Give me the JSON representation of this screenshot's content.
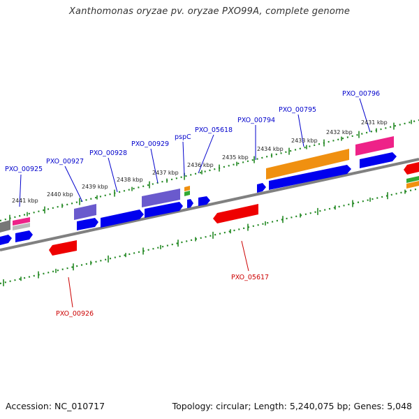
{
  "header": {
    "title": "Xanthomonas oryzae pv. oryzae PXO99A, complete genome"
  },
  "footer": {
    "accession": "Accession: NC_010717",
    "summary": "Topology: circular; Length: 5,240,075 bp; Genes: 5,048"
  },
  "kbp_labels": [
    "2441 kbp",
    "2440 kbp",
    "2439 kbp",
    "2438 kbp",
    "2437 kbp",
    "2436 kbp",
    "2435 kbp",
    "2434 kbp",
    "2433 kbp",
    "2432 kbp",
    "2431 kbp"
  ],
  "gene_labels_forward": [
    "PXO_00925",
    "PXO_00927",
    "PXO_00928",
    "PXO_00929",
    "pspC",
    "PXO_05618",
    "PXO_00794",
    "PXO_00795",
    "PXO_00796"
  ],
  "gene_labels_reverse": [
    "PXO_00926",
    "PXO_05617"
  ],
  "colors": {
    "cds_blue": "#0000ee",
    "reverse_red": "#ee0000",
    "orange": "#f09010",
    "purple": "#6a5acd",
    "pink": "#ee2288",
    "gray": "#777777",
    "green": "#33aa33",
    "axis_green": "#228822",
    "forward_label": "#0000cc",
    "reverse_label": "#cc0000"
  }
}
